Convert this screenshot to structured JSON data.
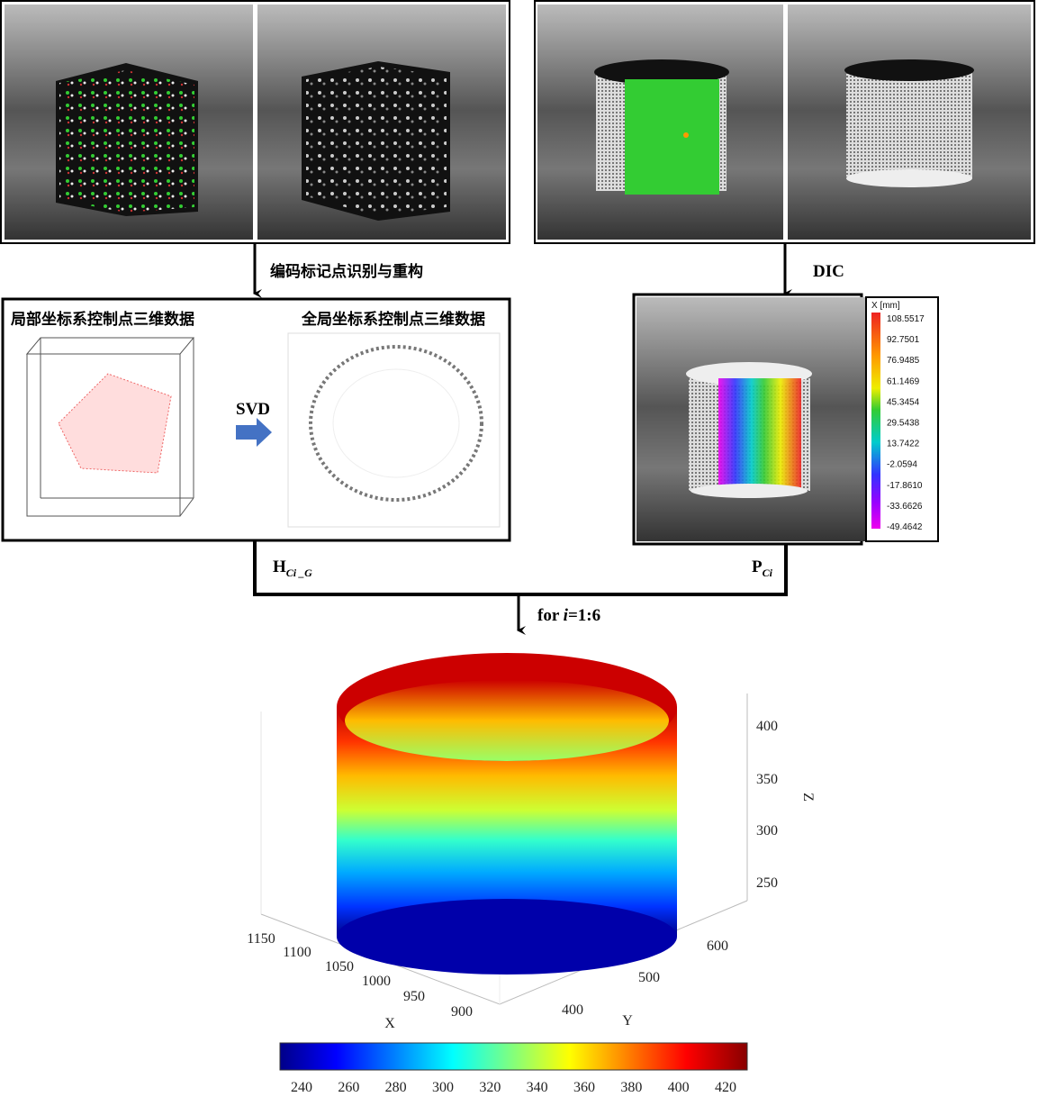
{
  "steps": {
    "recognition": "编码标记点识别与重构",
    "dic": "DIC",
    "svd": "SVD",
    "h_label": {
      "main": "H",
      "sub": "Ci _G"
    },
    "p_label": {
      "main": "P",
      "sub": "Ci"
    },
    "loop": {
      "prefix": "for ",
      "var": "i",
      "suffix": "=1:6"
    }
  },
  "panels": {
    "local_title": "局部坐标系控制点三维数据",
    "global_title": "全局坐标系控制点三维数据"
  },
  "dic_colorbar": {
    "title": "X [mm]",
    "ticks": [
      "108.5517",
      "92.7501",
      "76.9485",
      "61.1469",
      "45.3454",
      "29.5438",
      "13.7422",
      "-2.0594",
      "-17.8610",
      "-33.6626",
      "-49.4642"
    ]
  },
  "result_plot": {
    "z_ticks": [
      "250",
      "300",
      "350",
      "400"
    ],
    "z_label": "Z",
    "x_ticks": [
      "900",
      "950",
      "1000",
      "1050",
      "1100",
      "1150"
    ],
    "x_label": "X",
    "y_ticks": [
      "400",
      "500",
      "600"
    ],
    "y_label": "Y",
    "colorbar_ticks": [
      "240",
      "260",
      "280",
      "300",
      "320",
      "340",
      "360",
      "380",
      "400",
      "420"
    ]
  }
}
